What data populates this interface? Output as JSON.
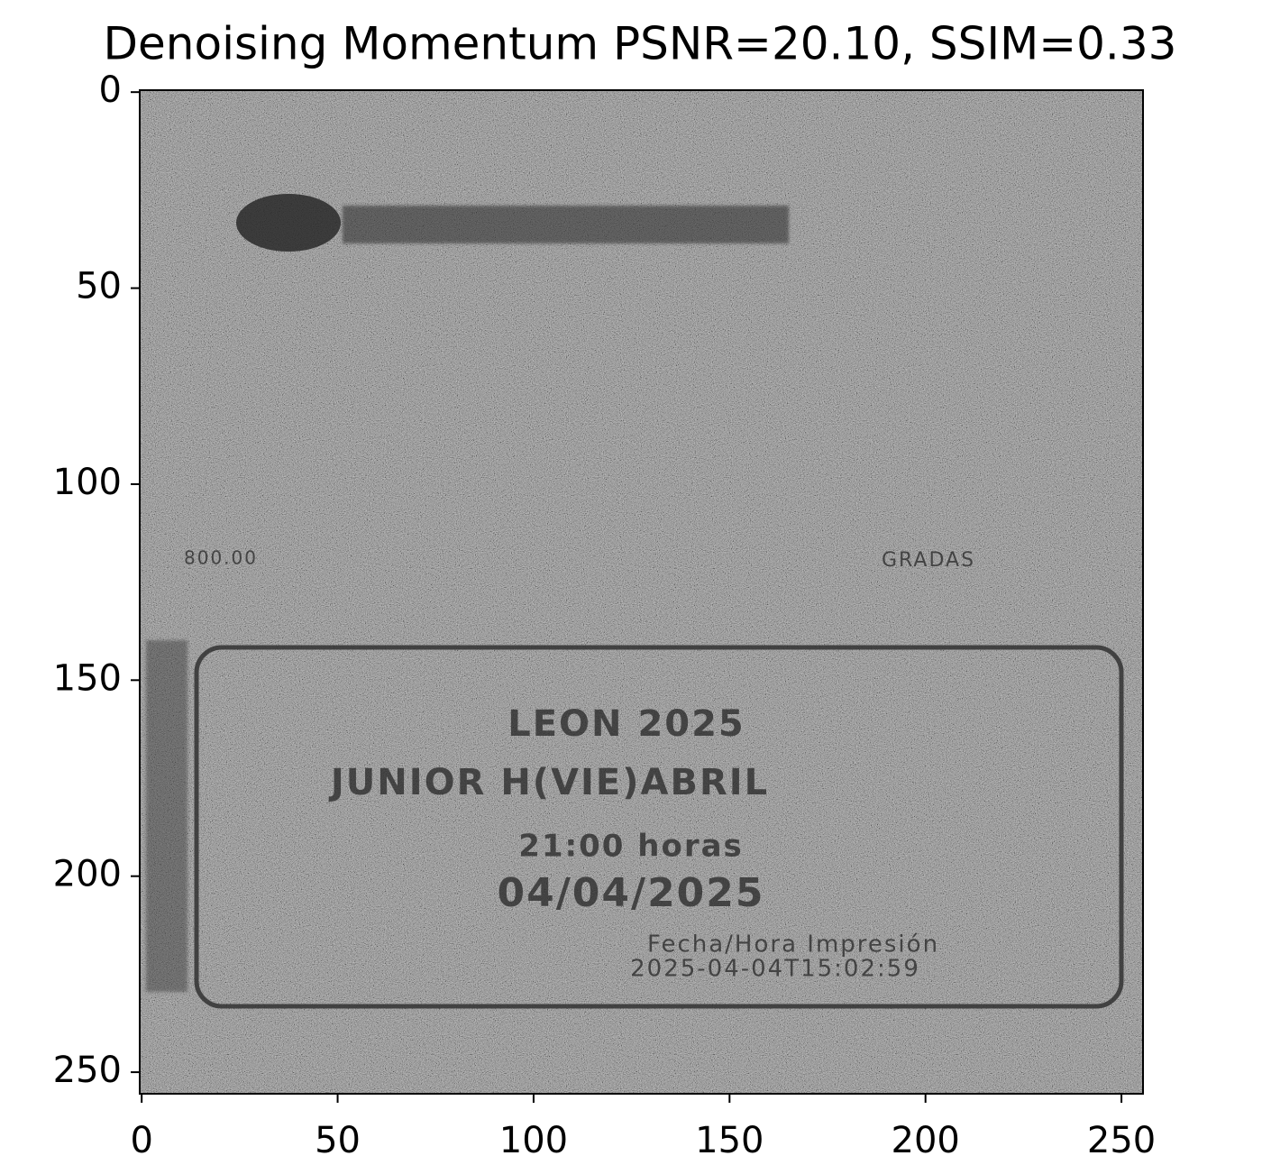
{
  "chart_data": {
    "type": "image",
    "title": "Denoising Momentum PSNR=20.10, SSIM=0.33",
    "xlim": [
      -0.5,
      255.5
    ],
    "ylim": [
      255.5,
      -0.5
    ],
    "xticks": [
      0,
      50,
      100,
      150,
      200,
      250
    ],
    "yticks": [
      0,
      50,
      100,
      150,
      200,
      250
    ],
    "cmap": "gray",
    "annotations": [
      "800.00",
      "GRADAS",
      "LEON 2025",
      "JUNIOR H(VIE)ABRIL",
      "21:00 horas",
      "04/04/2025",
      "Fecha/Hora Impresión",
      "2025-04-04T15:02:59"
    ]
  }
}
